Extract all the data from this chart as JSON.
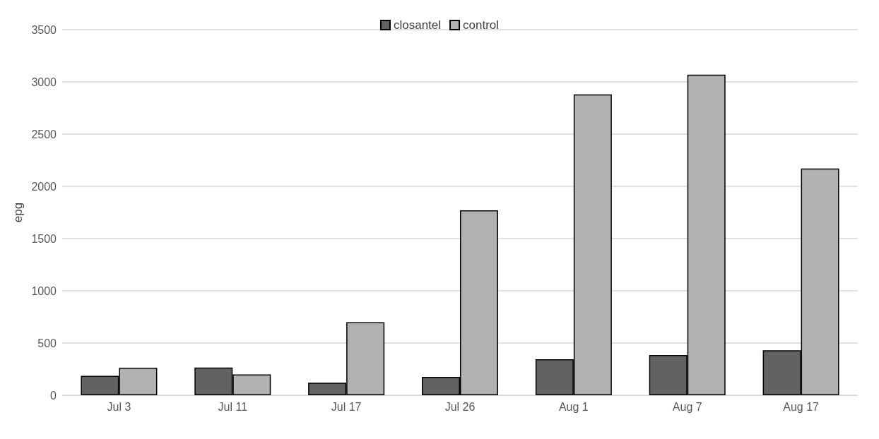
{
  "chart_data": {
    "type": "bar",
    "ylabel": "epg",
    "categories": [
      "Jul 3",
      "Jul 11",
      "Jul 17",
      "Jul 26",
      "Aug 1",
      "Aug 7",
      "Aug 17"
    ],
    "series": [
      {
        "name": "closantel",
        "color": "#626262",
        "values": [
          185,
          265,
          120,
          175,
          345,
          385,
          430
        ]
      },
      {
        "name": "control",
        "color": "#b2b2b2",
        "values": [
          263,
          200,
          700,
          1770,
          2880,
          3070,
          2170
        ]
      }
    ],
    "ylim": [
      0,
      3500
    ],
    "yticks": [
      0,
      500,
      1000,
      1500,
      2000,
      2500,
      3000,
      3500
    ],
    "grid": "y",
    "legend": "top"
  }
}
